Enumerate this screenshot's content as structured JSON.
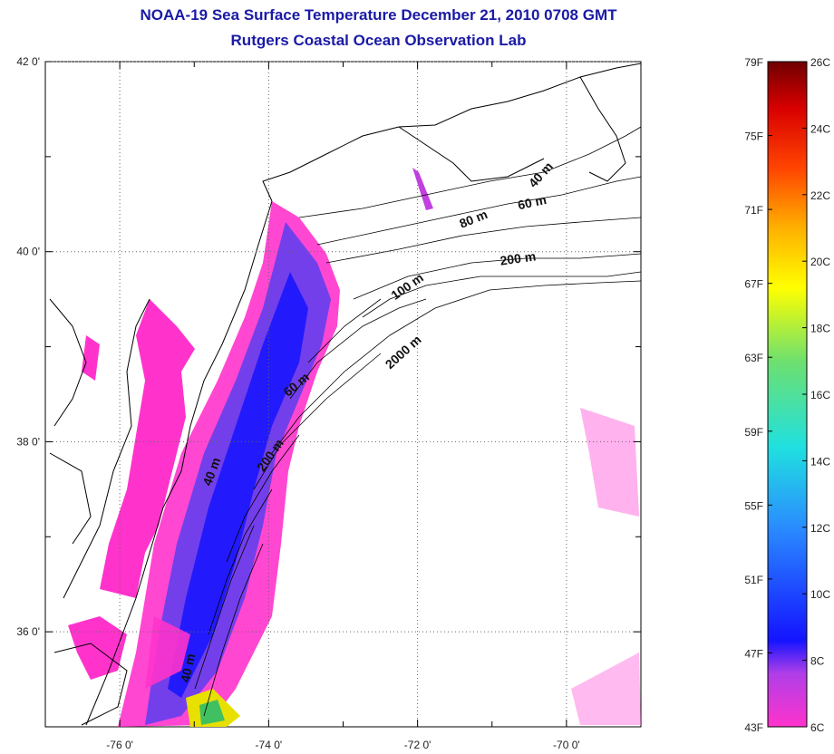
{
  "title": "NOAA-19 Sea Surface Temperature December 21, 2010 0708 GMT",
  "subtitle": "Rutgers Coastal Ocean Observation Lab",
  "map": {
    "lon_range": [
      -77.0,
      -69.0
    ],
    "lat_range": [
      35.0,
      42.0
    ],
    "lat_ticks": [
      "42 0'",
      "40 0'",
      "38 0'",
      "36 0'"
    ],
    "lat_tick_values": [
      42,
      40,
      38,
      36
    ],
    "lon_ticks": [
      "-76 0'",
      "-74 0'",
      "-72 0'",
      "-70 0'"
    ],
    "lon_tick_values": [
      -76,
      -74,
      -72,
      -70
    ],
    "grid": "dotted",
    "contour_labels": [
      "40 m",
      "60 m",
      "80 m",
      "200 m",
      "100 m",
      "2000 m",
      "60 m",
      "200 m",
      "40 m",
      "40 m"
    ]
  },
  "colorbar": {
    "fahrenheit": [
      "79F",
      "75F",
      "71F",
      "67F",
      "63F",
      "59F",
      "55F",
      "51F",
      "47F",
      "43F"
    ],
    "celsius": [
      "26C",
      "24C",
      "22C",
      "20C",
      "18C",
      "16C",
      "14C",
      "12C",
      "10C",
      "8C",
      "6C"
    ],
    "colors": [
      "#7a0000",
      "#e00000",
      "#ff6a00",
      "#ffd000",
      "#ffff00",
      "#5ee05e",
      "#00e0e0",
      "#1a8cff",
      "#0000ff",
      "#7a2be0",
      "#ff33cc"
    ]
  }
}
